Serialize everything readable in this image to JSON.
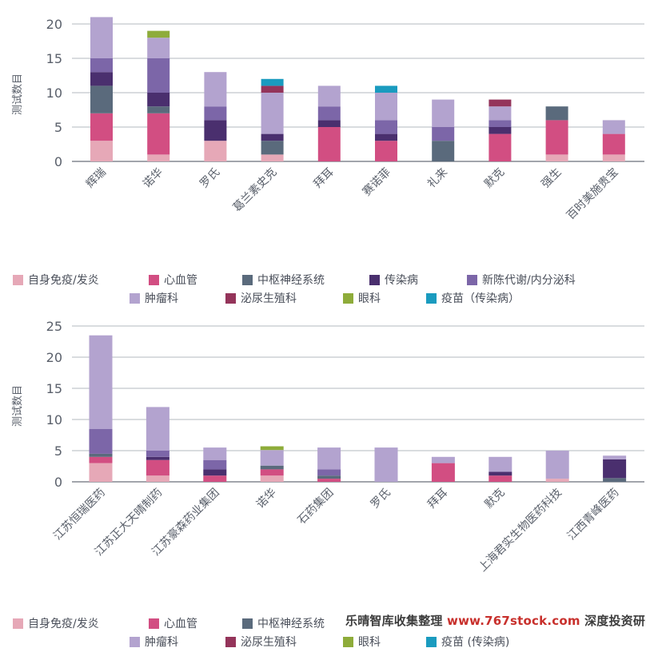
{
  "categories": [
    {
      "key": "autoimmune",
      "label": "自身免疫/发炎",
      "color": "#e6a8b7"
    },
    {
      "key": "cardio",
      "label": "心血管",
      "color": "#d24e82"
    },
    {
      "key": "cns",
      "label": "中枢神经系统",
      "color": "#5a6a7c"
    },
    {
      "key": "infectious",
      "label": "传染病",
      "color": "#4a2f6e"
    },
    {
      "key": "metabolic",
      "label": "新陈代谢/内分泌科",
      "color": "#7c66a8"
    },
    {
      "key": "oncology",
      "label": "肿瘤科",
      "color": "#b3a3cf"
    },
    {
      "key": "urology",
      "label": "泌尿生殖科",
      "color": "#94345a"
    },
    {
      "key": "ophthalmology",
      "label": "眼科",
      "color": "#8eac3a"
    },
    {
      "key": "vaccine",
      "label": "疫苗（传染病）",
      "color": "#1a9bbf"
    }
  ],
  "legend2_labels": {
    "autoimmune": "自身免疫/发炎",
    "cardio": "心血管",
    "cns": "中枢神经系统",
    "oncology": "肿瘤科",
    "urology": "泌尿生殖科",
    "ophthalmology": "眼科",
    "vaccine": "疫苗  (传染病)"
  },
  "watermark": {
    "prefix": "乐晴智库收集整理 ",
    "url": "www.767stock.com",
    "suffix": " 深度投资研"
  },
  "chart_data": [
    {
      "type": "bar",
      "stacked": true,
      "ylabel": "测试数目",
      "ylim": [
        0,
        20
      ],
      "yticks": [
        0,
        5,
        10,
        15,
        20
      ],
      "grid": true,
      "categories": [
        "辉瑞",
        "诺华",
        "罗氏",
        "葛兰素史克",
        "拜耳",
        "赛诺菲",
        "礼来",
        "默克",
        "强生",
        "百时美施贵宝"
      ],
      "series": [
        {
          "key": "autoimmune",
          "values": [
            3,
            1,
            3,
            1,
            0,
            0,
            0,
            0,
            1,
            1
          ]
        },
        {
          "key": "cardio",
          "values": [
            4,
            6,
            0,
            0,
            5,
            3,
            0,
            4,
            5,
            3
          ]
        },
        {
          "key": "cns",
          "values": [
            4,
            1,
            0,
            2,
            0,
            0,
            3,
            0,
            2,
            0
          ]
        },
        {
          "key": "infectious",
          "values": [
            2,
            2,
            3,
            1,
            1,
            1,
            0,
            1,
            0,
            0
          ]
        },
        {
          "key": "metabolic",
          "values": [
            2,
            5,
            2,
            0,
            2,
            2,
            2,
            1,
            0,
            0
          ]
        },
        {
          "key": "oncology",
          "values": [
            6,
            3,
            5,
            6,
            3,
            4,
            4,
            2,
            0,
            2
          ]
        },
        {
          "key": "urology",
          "values": [
            0,
            0,
            0,
            1,
            0,
            0,
            0,
            1,
            0,
            0
          ]
        },
        {
          "key": "ophthalmology",
          "values": [
            0,
            1,
            0,
            0,
            0,
            0,
            0,
            0,
            0,
            0
          ]
        },
        {
          "key": "vaccine",
          "values": [
            0,
            0,
            0,
            1,
            0,
            1,
            0,
            0,
            0,
            0
          ]
        }
      ]
    },
    {
      "type": "bar",
      "stacked": true,
      "ylabel": "测试数目",
      "ylim": [
        0,
        25
      ],
      "yticks": [
        0,
        5,
        10,
        15,
        20,
        25
      ],
      "grid": true,
      "categories": [
        "江苏恒瑞医药",
        "江苏正大天晴制药",
        "江苏豪森药业集团",
        "诺华",
        "石药集团",
        "罗氏",
        "拜耳",
        "默克",
        "上海君实生物医药科技",
        "江西青峰医药"
      ],
      "series": [
        {
          "key": "autoimmune",
          "values": [
            3,
            1,
            0,
            1,
            0,
            0,
            0,
            0,
            0.5,
            0
          ]
        },
        {
          "key": "cardio",
          "values": [
            1,
            2.5,
            1,
            1,
            0.5,
            0,
            3,
            1,
            0,
            0
          ]
        },
        {
          "key": "cns",
          "values": [
            0.5,
            0,
            0,
            0.6,
            0.5,
            0,
            0,
            0,
            0,
            0.6
          ]
        },
        {
          "key": "infectious",
          "values": [
            0,
            0.5,
            1,
            0,
            0,
            0,
            0,
            0.6,
            0,
            3
          ]
        },
        {
          "key": "metabolic",
          "values": [
            4,
            1,
            1.5,
            0,
            1,
            0,
            0,
            0,
            0,
            0
          ]
        },
        {
          "key": "oncology",
          "values": [
            15,
            7,
            2,
            2.5,
            3.5,
            5.5,
            1,
            2.4,
            4.5,
            0.6
          ]
        },
        {
          "key": "urology",
          "values": [
            0,
            0,
            0,
            0,
            0,
            0,
            0,
            0,
            0,
            0
          ]
        },
        {
          "key": "ophthalmology",
          "values": [
            0,
            0,
            0,
            0.6,
            0,
            0,
            0,
            0,
            0,
            0
          ]
        },
        {
          "key": "vaccine",
          "values": [
            0,
            0,
            0,
            0,
            0,
            0,
            0,
            0,
            0,
            0
          ]
        }
      ]
    }
  ]
}
